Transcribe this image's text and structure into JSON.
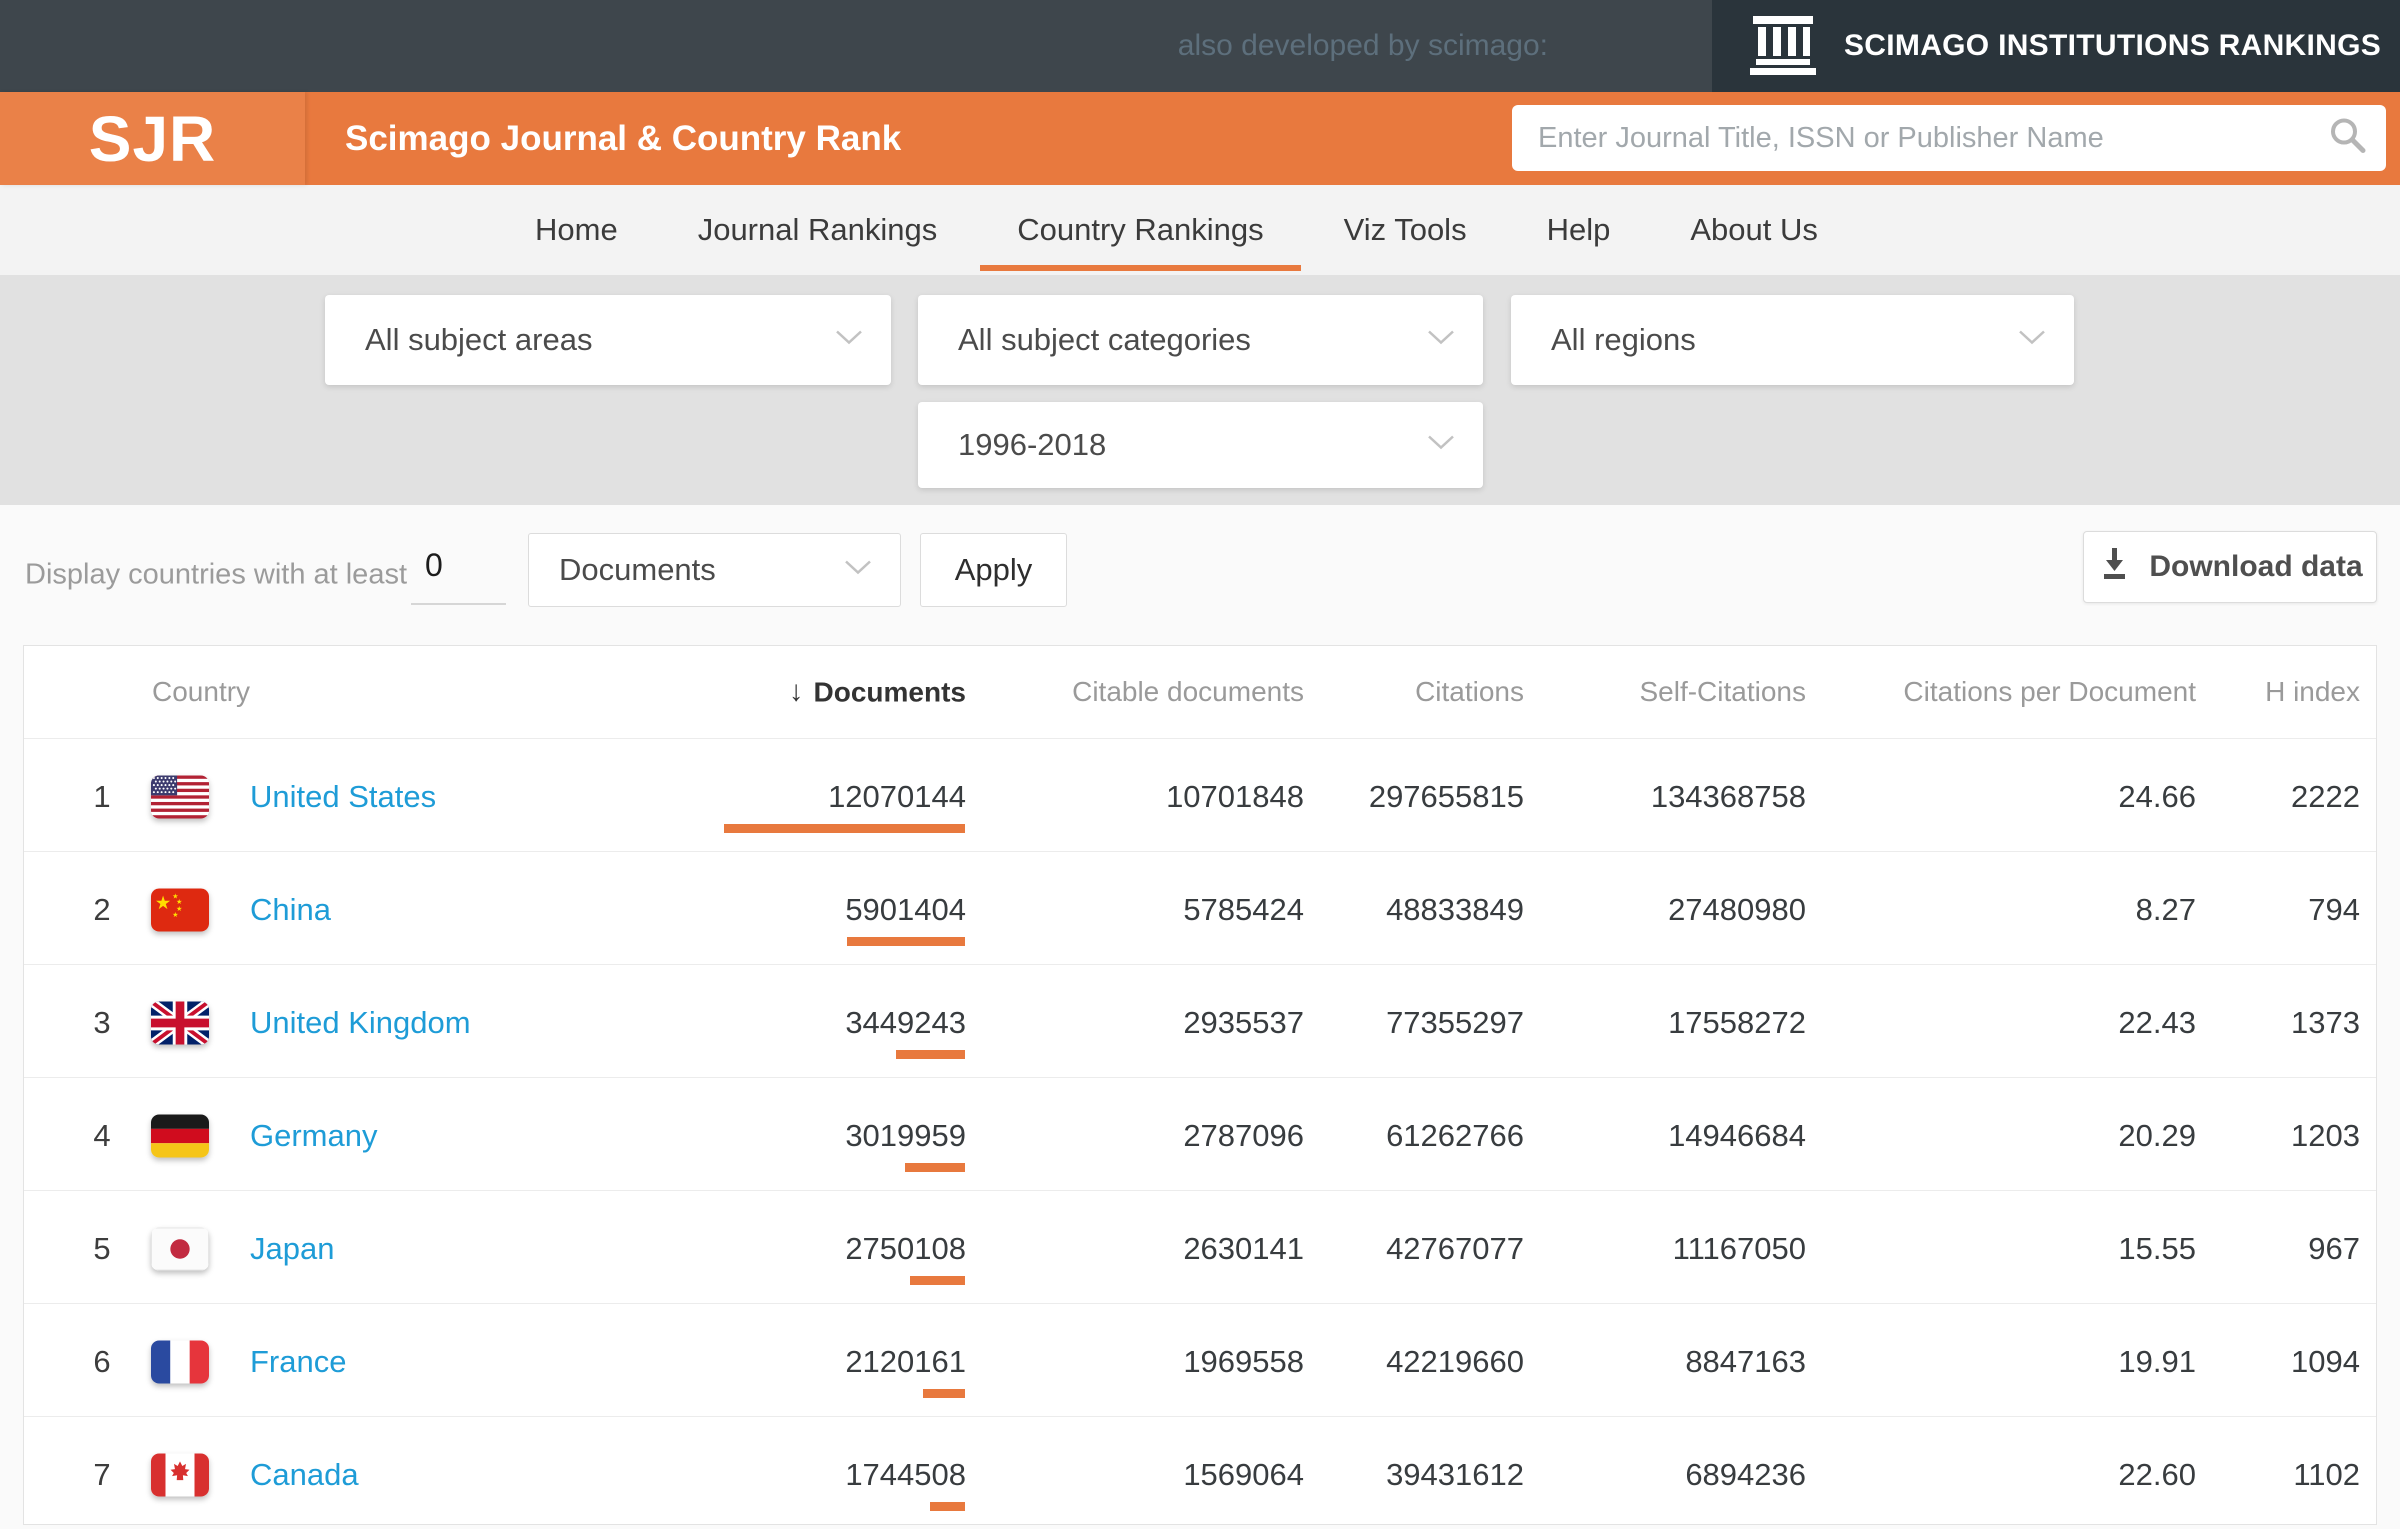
{
  "topbar": {
    "tagline": "also developed by scimago:",
    "sir_title": "SCIMAGO INSTITUTIONS RANKINGS"
  },
  "header": {
    "logo": "SJR",
    "title": "Scimago Journal & Country Rank",
    "search_placeholder": "Enter Journal Title, ISSN or Publisher Name"
  },
  "nav": {
    "items": [
      {
        "label": "Home",
        "active": false
      },
      {
        "label": "Journal Rankings",
        "active": false
      },
      {
        "label": "Country Rankings",
        "active": true
      },
      {
        "label": "Viz Tools",
        "active": false
      },
      {
        "label": "Help",
        "active": false
      },
      {
        "label": "About Us",
        "active": false
      }
    ]
  },
  "filters": {
    "subject_area": "All subject areas",
    "subject_category": "All subject categories",
    "region": "All regions",
    "period": "1996-2018"
  },
  "controls": {
    "display_label": "Display countries with at least",
    "min_value": "0",
    "metric": "Documents",
    "apply_label": "Apply",
    "download_label": "Download data"
  },
  "table": {
    "columns": [
      "Country",
      "Documents",
      "Citable documents",
      "Citations",
      "Self-Citations",
      "Citations per Document",
      "H index"
    ],
    "sorted_column": "Documents",
    "sort_direction": "desc",
    "max_documents": 12070144,
    "rows": [
      {
        "rank": 1,
        "country": "United States",
        "flag": "us",
        "documents": 12070144,
        "citable_documents": 10701848,
        "citations": 297655815,
        "self_citations": 134368758,
        "citations_per_document": "24.66",
        "h_index": 2222
      },
      {
        "rank": 2,
        "country": "China",
        "flag": "cn",
        "documents": 5901404,
        "citable_documents": 5785424,
        "citations": 48833849,
        "self_citations": 27480980,
        "citations_per_document": "8.27",
        "h_index": 794
      },
      {
        "rank": 3,
        "country": "United Kingdom",
        "flag": "gb",
        "documents": 3449243,
        "citable_documents": 2935537,
        "citations": 77355297,
        "self_citations": 17558272,
        "citations_per_document": "22.43",
        "h_index": 1373
      },
      {
        "rank": 4,
        "country": "Germany",
        "flag": "de",
        "documents": 3019959,
        "citable_documents": 2787096,
        "citations": 61262766,
        "self_citations": 14946684,
        "citations_per_document": "20.29",
        "h_index": 1203
      },
      {
        "rank": 5,
        "country": "Japan",
        "flag": "jp",
        "documents": 2750108,
        "citable_documents": 2630141,
        "citations": 42767077,
        "self_citations": 11167050,
        "citations_per_document": "15.55",
        "h_index": 967
      },
      {
        "rank": 6,
        "country": "France",
        "flag": "fr",
        "documents": 2120161,
        "citable_documents": 1969558,
        "citations": 42219660,
        "self_citations": 8847163,
        "citations_per_document": "19.91",
        "h_index": 1094
      },
      {
        "rank": 7,
        "country": "Canada",
        "flag": "ca",
        "documents": 1744508,
        "citable_documents": 1569064,
        "citations": 39431612,
        "self_citations": 6894236,
        "citations_per_document": "22.60",
        "h_index": 1102
      }
    ]
  },
  "icons": {
    "sir_logo": "classical-building",
    "search": "magnifier",
    "download": "arrow-down-to-line",
    "dropdown": "chevron-down",
    "sort": "arrow-down"
  },
  "colors": {
    "accent_orange": "#e8793e",
    "link_blue": "#1e9cd7",
    "topbar_dark": "#3e464c",
    "topbar_darker": "#2a343b",
    "band_gray": "#e1e1e1"
  }
}
